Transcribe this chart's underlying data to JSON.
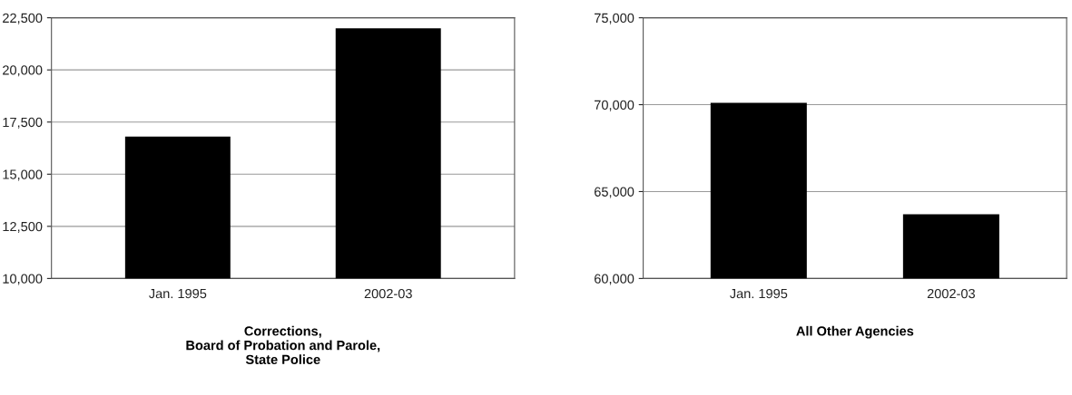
{
  "chart_data": [
    {
      "type": "bar",
      "xlabel": "Corrections,\nBoard of Probation and Parole,\nState Police",
      "categories": [
        "Jan. 1995",
        "2002-03"
      ],
      "values": [
        16800,
        22000
      ],
      "color": "#000000",
      "ylim": [
        10000,
        22500
      ],
      "yticks": [
        {
          "value": 10000,
          "label": "10,000"
        },
        {
          "value": 12500,
          "label": "12,500"
        },
        {
          "value": 15000,
          "label": "15,000"
        },
        {
          "value": 17500,
          "label": "17,500"
        },
        {
          "value": 20000,
          "label": "20,000"
        },
        {
          "value": 22500,
          "label": "22,500"
        }
      ],
      "grid": "y"
    },
    {
      "type": "bar",
      "xlabel": "All Other Agencies",
      "categories": [
        "Jan. 1995",
        "2002-03"
      ],
      "values": [
        70100,
        63700
      ],
      "color": "#000000",
      "ylim": [
        60000,
        75000
      ],
      "yticks": [
        {
          "value": 60000,
          "label": "60,000"
        },
        {
          "value": 65000,
          "label": "65,000"
        },
        {
          "value": 70000,
          "label": "70,000"
        },
        {
          "value": 75000,
          "label": "75,000"
        }
      ],
      "grid": "y"
    }
  ]
}
